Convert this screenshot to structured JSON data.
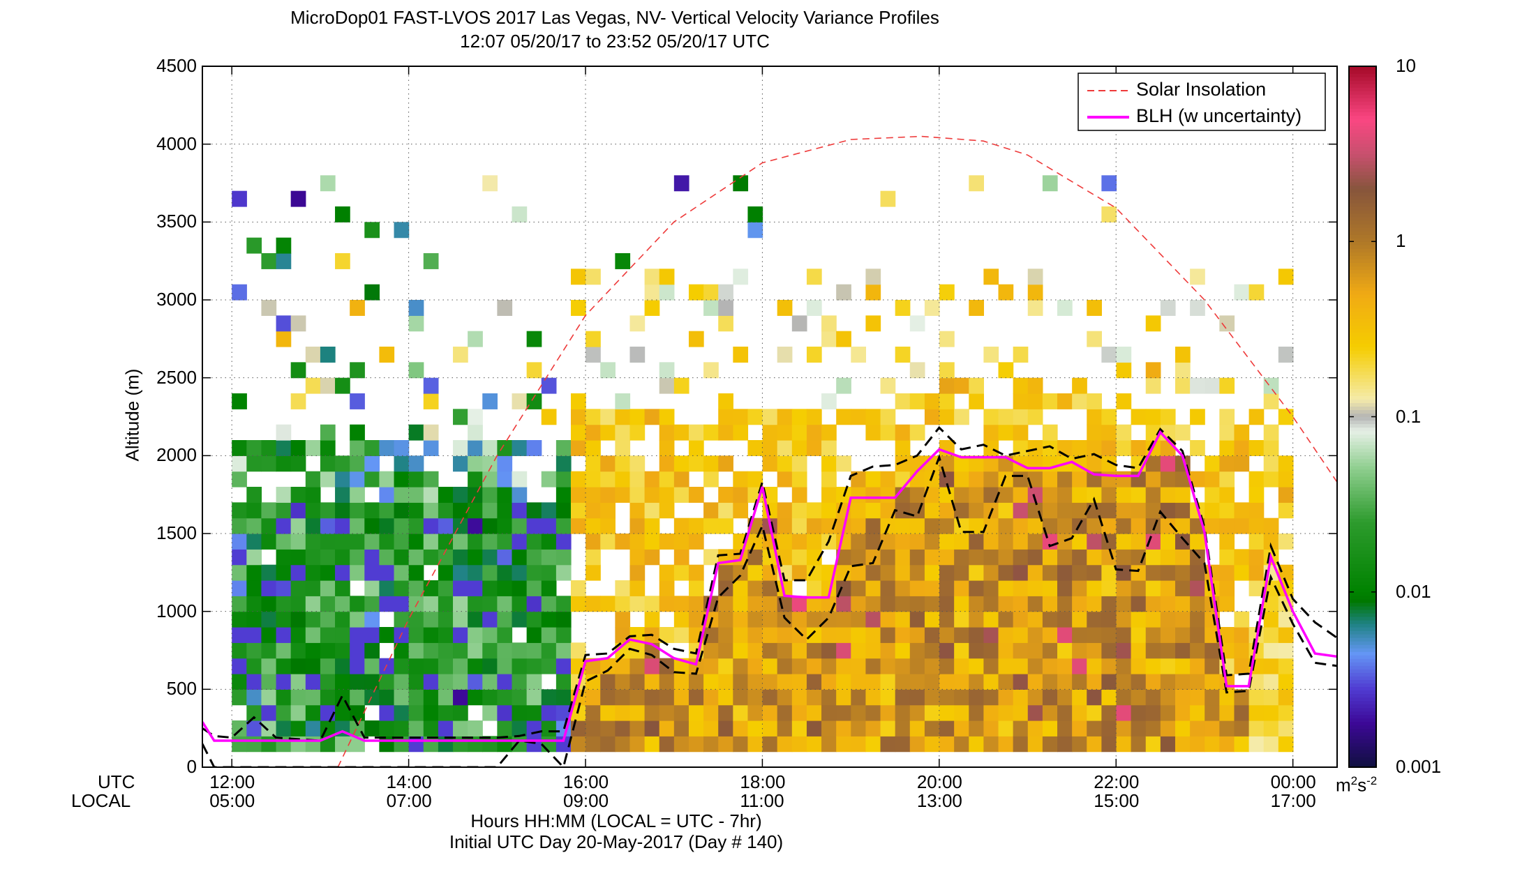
{
  "chart_data": {
    "type": "heatmap",
    "title": "MicroDop01 FAST-LVOS 2017 Las Vegas, NV- Vertical Velocity Variance Profiles",
    "subtitle": "12:07 05/20/17 to 23:52 05/20/17  UTC",
    "ylabel": "Altitude (m)",
    "xlabel": "Hours HH:MM  (LOCAL = UTC - 7hr)",
    "xlabel2": "Initial UTC Day 20-May-2017 (Day # 140)",
    "x_row_labels": [
      "UTC",
      "LOCAL"
    ],
    "x_ticks_utc": [
      "12:00",
      "14:00",
      "16:00",
      "18:00",
      "20:00",
      "22:00",
      "00:00"
    ],
    "x_ticks_local": [
      "05:00",
      "07:00",
      "09:00",
      "11:00",
      "13:00",
      "15:00",
      "17:00"
    ],
    "x_tick_hours": [
      12,
      14,
      16,
      18,
      20,
      22,
      24
    ],
    "xlim_hours": [
      11.667,
      24.5
    ],
    "ylim": [
      0,
      4500
    ],
    "y_ticks": [
      "0",
      "500",
      "1000",
      "1500",
      "2000",
      "2500",
      "3000",
      "3500",
      "4000",
      "4500"
    ],
    "grid": true,
    "legend_position": "top-right",
    "colorbar": {
      "scale": "log",
      "range": [
        0.001,
        10
      ],
      "tick_labels": [
        "0.001",
        "0.01",
        "0.1",
        "1",
        "10"
      ],
      "unit_base": "m",
      "unit_exp1": "2",
      "unit_mid": "s",
      "unit_exp2": "-2"
    },
    "series": [
      {
        "name": "Solar Insolation",
        "style": "dashed",
        "color": "#ee3a3a",
        "x_hours": [
          13.2,
          14.0,
          15.0,
          16.0,
          17.0,
          18.0,
          19.0,
          19.8,
          20.5,
          21.0,
          22.0,
          23.0,
          24.0,
          24.5
        ],
        "y": [
          0,
          950,
          2000,
          2900,
          3500,
          3880,
          4030,
          4050,
          4020,
          3930,
          3590,
          3000,
          2250,
          1830
        ]
      },
      {
        "name": "BLH (w uncertainty)",
        "style": "solid",
        "color": "#ff00ff",
        "x_hours": [
          11.667,
          11.8,
          12.0,
          12.5,
          13.0,
          13.25,
          13.5,
          14.0,
          14.5,
          15.0,
          15.5,
          15.75,
          16.0,
          16.25,
          16.5,
          16.75,
          17.0,
          17.25,
          17.5,
          17.75,
          18.0,
          18.25,
          18.5,
          18.75,
          19.0,
          19.25,
          19.5,
          19.75,
          20.0,
          20.25,
          20.5,
          20.75,
          21.0,
          21.25,
          21.5,
          21.75,
          22.0,
          22.25,
          22.5,
          22.75,
          23.0,
          23.25,
          23.5,
          23.75,
          24.0,
          24.25,
          24.5
        ],
        "y": [
          290,
          170,
          170,
          170,
          170,
          230,
          170,
          170,
          170,
          170,
          170,
          170,
          680,
          700,
          820,
          790,
          700,
          660,
          1310,
          1330,
          1800,
          1100,
          1090,
          1090,
          1730,
          1730,
          1730,
          1900,
          2040,
          1990,
          1990,
          1990,
          1920,
          1920,
          1960,
          1880,
          1870,
          1870,
          2150,
          2000,
          1510,
          520,
          520,
          1350,
          1000,
          730,
          710
        ]
      },
      {
        "name": "",
        "style": "dashed",
        "color": "#000000",
        "role": "upper_uncertainty",
        "x_hours": [
          11.667,
          11.8,
          12.0,
          12.25,
          12.5,
          13.0,
          13.25,
          13.5,
          14.0,
          14.5,
          15.0,
          15.25,
          15.5,
          15.75,
          16.0,
          16.25,
          16.5,
          16.75,
          17.0,
          17.25,
          17.5,
          17.75,
          18.0,
          18.25,
          18.5,
          18.75,
          19.0,
          19.25,
          19.5,
          19.75,
          20.0,
          20.25,
          20.5,
          20.75,
          21.0,
          21.25,
          21.5,
          21.75,
          22.0,
          22.25,
          22.5,
          22.75,
          23.0,
          23.25,
          23.5,
          23.75,
          24.0,
          24.25,
          24.5
        ],
        "y": [
          250,
          200,
          190,
          320,
          190,
          170,
          460,
          190,
          190,
          190,
          190,
          200,
          230,
          230,
          720,
          730,
          840,
          850,
          760,
          730,
          1360,
          1370,
          1830,
          1200,
          1200,
          1450,
          1870,
          1930,
          1940,
          2000,
          2180,
          2040,
          2070,
          2000,
          2030,
          2060,
          1980,
          2010,
          1940,
          1920,
          2170,
          2030,
          1540,
          590,
          600,
          1420,
          1080,
          930,
          830
        ]
      },
      {
        "name": "",
        "style": "dashed",
        "color": "#000000",
        "role": "lower_uncertainty",
        "x_hours": [
          11.667,
          11.8,
          12.0,
          12.5,
          13.0,
          13.25,
          13.5,
          14.0,
          14.5,
          15.0,
          15.25,
          15.5,
          15.75,
          16.0,
          16.25,
          16.5,
          16.75,
          17.0,
          17.25,
          17.5,
          17.75,
          18.0,
          18.25,
          18.5,
          18.75,
          19.0,
          19.25,
          19.5,
          19.75,
          20.0,
          20.25,
          20.5,
          20.75,
          21.0,
          21.25,
          21.5,
          21.75,
          22.0,
          22.25,
          22.5,
          22.75,
          23.0,
          23.25,
          23.5,
          23.75,
          24.0,
          24.25,
          24.5
        ],
        "y": [
          150,
          0,
          0,
          0,
          0,
          0,
          0,
          0,
          0,
          0,
          170,
          150,
          0,
          550,
          620,
          760,
          720,
          610,
          600,
          1090,
          1230,
          1550,
          960,
          820,
          960,
          1290,
          1310,
          1650,
          1610,
          1990,
          1510,
          1510,
          1870,
          1870,
          1420,
          1470,
          1720,
          1270,
          1260,
          1640,
          1470,
          1310,
          480,
          490,
          1220,
          920,
          670,
          650
        ]
      }
    ]
  }
}
